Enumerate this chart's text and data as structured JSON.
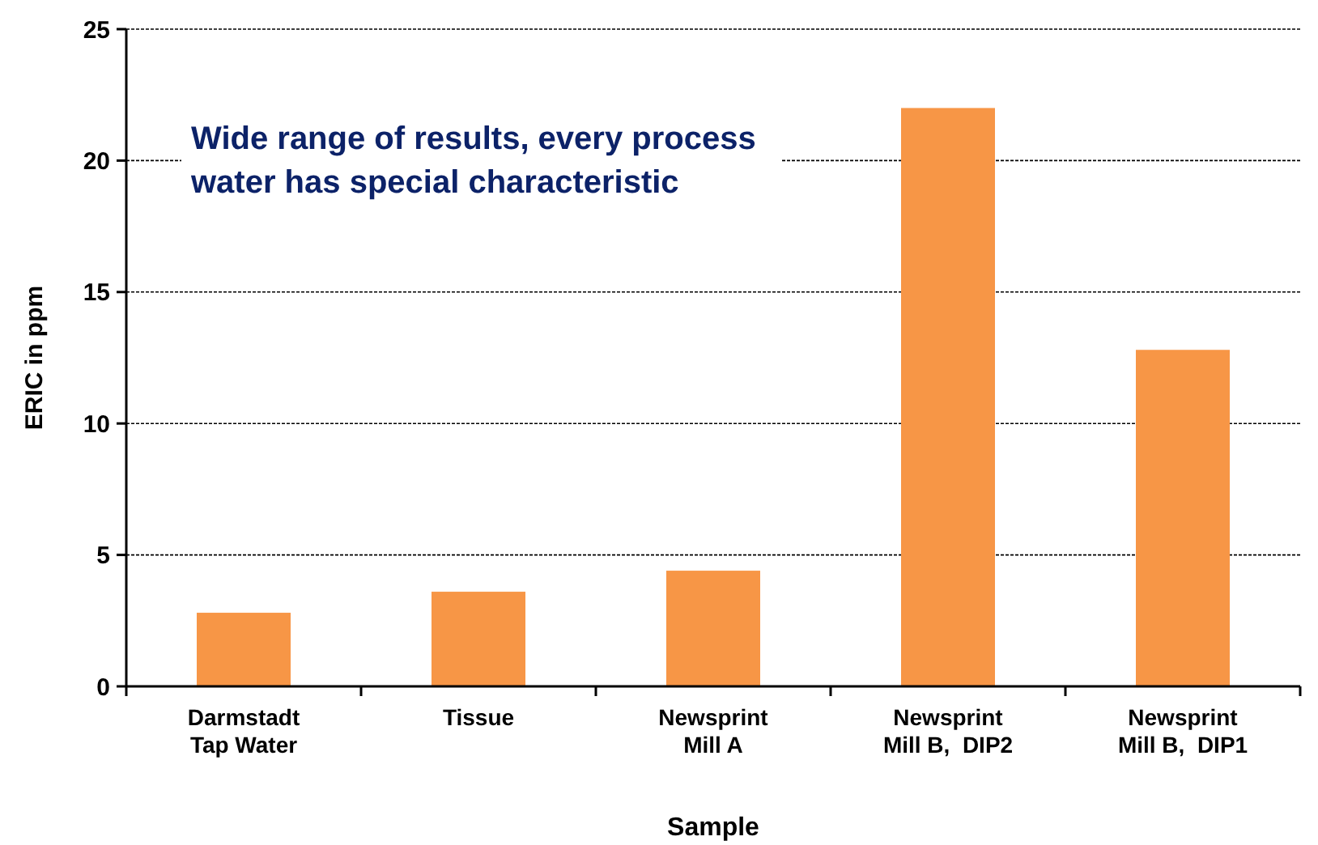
{
  "chart_data": {
    "type": "bar",
    "xlabel": "Sample",
    "ylabel": "ERIC in ppm",
    "categories": [
      "Darmstadt\nTap Water",
      "Tissue",
      "Newsprint\nMill A",
      "Newsprint\nMill B,  DIP2",
      "Newsprint\nMill B,  DIP1"
    ],
    "values": [
      2.8,
      3.6,
      4.4,
      22.0,
      12.8
    ],
    "color": "#f79646",
    "ylim": [
      0,
      25
    ],
    "yticks": [
      0,
      5,
      10,
      15,
      20,
      25
    ],
    "grid": "y",
    "annotations": [
      "Wide range of results, every process water has special characteristic"
    ]
  }
}
